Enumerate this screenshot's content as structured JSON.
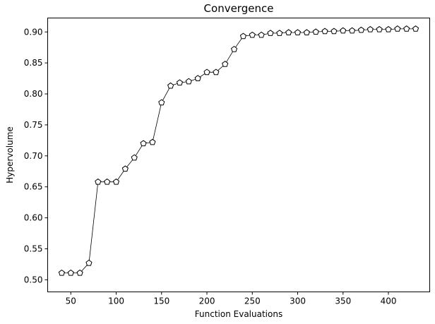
{
  "chart_data": {
    "type": "line",
    "title": "Convergence",
    "xlabel": "Function Evaluations",
    "ylabel": "Hypervolume",
    "xlim": [
      24.5,
      445.5
    ],
    "ylim": [
      0.4805,
      0.9225
    ],
    "xticks": [
      50,
      100,
      150,
      200,
      250,
      300,
      350,
      400
    ],
    "yticks": [
      0.5,
      0.55,
      0.6,
      0.65,
      0.7,
      0.75,
      0.8,
      0.85,
      0.9
    ],
    "grid": false,
    "marker": "pentagon",
    "line_color": "#000000",
    "series": [
      {
        "x": [
          40,
          50,
          60,
          70,
          80,
          90,
          100,
          110,
          120,
          130,
          140,
          150,
          160,
          170,
          180,
          190,
          200,
          210,
          220,
          230,
          240,
          250,
          260,
          270,
          280,
          290,
          300,
          310,
          320,
          330,
          340,
          350,
          360,
          370,
          380,
          390,
          400,
          410,
          420,
          430
        ],
        "y": [
          0.511,
          0.511,
          0.511,
          0.527,
          0.658,
          0.658,
          0.658,
          0.679,
          0.697,
          0.72,
          0.722,
          0.786,
          0.813,
          0.818,
          0.82,
          0.825,
          0.835,
          0.835,
          0.848,
          0.872,
          0.893,
          0.895,
          0.895,
          0.898,
          0.898,
          0.899,
          0.899,
          0.899,
          0.9,
          0.901,
          0.901,
          0.902,
          0.902,
          0.903,
          0.904,
          0.904,
          0.904,
          0.905,
          0.905,
          0.905
        ]
      }
    ]
  }
}
